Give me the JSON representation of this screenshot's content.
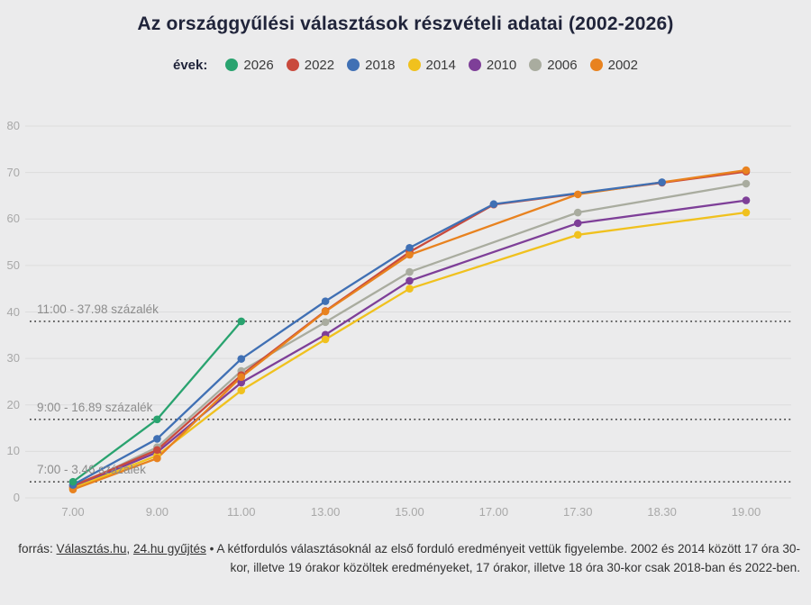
{
  "title": "Az országgyűlési választások részvételi adatai (2002-2026)",
  "legend": {
    "label": "évek:"
  },
  "footer": {
    "prefix": "forrás: ",
    "link1": "Választás.hu",
    "separator": ", ",
    "link2": "24.hu gyűjtés",
    "rest": " • A kétfordulós választásoknál az első forduló eredményeit vettük figyelembe. 2002 és 2014 között 17 óra 30-kor, illetve 19 órakor közöltek eredményeket, 17 órakor, illetve 18 óra 30-kor csak 2018-ban és 2022-ben."
  },
  "colors": {
    "background": "#ebebec",
    "grid": "#dcdcdd",
    "axis_text": "#a8a8a8",
    "annotation_text": "#8d8d8d",
    "dotted_line": "#454545",
    "title_text": "#20243a"
  },
  "chart_data": {
    "type": "line",
    "x": [
      "7.00",
      "9.00",
      "11.00",
      "13.00",
      "15.00",
      "17.00",
      "17.30",
      "18.30",
      "19.00"
    ],
    "ylim": [
      0,
      85
    ],
    "yticks": [
      0,
      10,
      20,
      30,
      40,
      50,
      60,
      70,
      80
    ],
    "grid": "horizontal",
    "legend_position": "top-center",
    "series": [
      {
        "name": "2026",
        "color": "#29a36f",
        "values": [
          3.46,
          16.89,
          37.98,
          null,
          null,
          null,
          null,
          null,
          null
        ]
      },
      {
        "name": "2022",
        "color": "#c94a3d",
        "values": [
          2.6,
          10.3,
          26.4,
          40.2,
          52.9,
          63.1,
          null,
          67.8,
          70.2
        ]
      },
      {
        "name": "2018",
        "color": "#4070b4",
        "values": [
          2.8,
          12.7,
          29.9,
          42.3,
          53.8,
          63.2,
          null,
          67.9,
          null
        ]
      },
      {
        "name": "2014",
        "color": "#f0c11e",
        "values": [
          2.1,
          9.1,
          23.1,
          34.1,
          45.0,
          null,
          56.6,
          null,
          61.4
        ]
      },
      {
        "name": "2010",
        "color": "#7e3f98",
        "values": [
          2.3,
          9.8,
          24.8,
          35.1,
          46.7,
          null,
          59.1,
          null,
          64.0
        ]
      },
      {
        "name": "2006",
        "color": "#a9ac9f",
        "values": [
          2.1,
          10.9,
          27.3,
          37.8,
          48.6,
          null,
          61.4,
          null,
          67.6
        ]
      },
      {
        "name": "2002",
        "color": "#e8821f",
        "values": [
          1.8,
          8.5,
          26.0,
          40.1,
          52.3,
          null,
          65.3,
          null,
          70.5
        ]
      }
    ],
    "annotations": [
      {
        "label": "7:00 - 3.46 százalék",
        "value": 3.46
      },
      {
        "label": "9:00 - 16.89 százalék",
        "value": 16.89
      },
      {
        "label": "11:00 - 37.98 százalék",
        "value": 37.98
      }
    ]
  }
}
